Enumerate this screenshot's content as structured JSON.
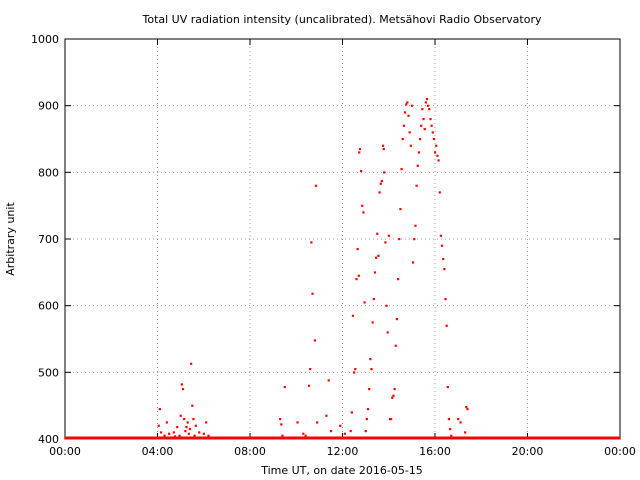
{
  "chart_data": {
    "type": "scatter",
    "title": "Total UV radiation intensity (uncalibrated). Metsähovi Radio Observatory",
    "xlabel": "Time UT, on date 2016-05-15",
    "ylabel": "Arbitrary unit",
    "xlim": [
      0,
      24
    ],
    "ylim": [
      400,
      1000
    ],
    "x_ticks": [
      {
        "value": 0,
        "label": "00:00"
      },
      {
        "value": 4,
        "label": "04:00"
      },
      {
        "value": 8,
        "label": "08:00"
      },
      {
        "value": 12,
        "label": "12:00"
      },
      {
        "value": 16,
        "label": "16:00"
      },
      {
        "value": 20,
        "label": "20:00"
      },
      {
        "value": 24,
        "label": "00:00"
      }
    ],
    "y_ticks": [
      {
        "value": 400,
        "label": "400"
      },
      {
        "value": 500,
        "label": "500"
      },
      {
        "value": 600,
        "label": "600"
      },
      {
        "value": 700,
        "label": "700"
      },
      {
        "value": 800,
        "label": "800"
      },
      {
        "value": 900,
        "label": "900"
      },
      {
        "value": 1000,
        "label": "1000"
      }
    ],
    "grid": true,
    "marker_color": "#ff0000",
    "baseline": {
      "from": 0,
      "to": 24,
      "value": 400
    },
    "points": [
      [
        4.05,
        420
      ],
      [
        4.1,
        445
      ],
      [
        4.15,
        410
      ],
      [
        4.3,
        405
      ],
      [
        4.4,
        425
      ],
      [
        4.5,
        408
      ],
      [
        4.6,
        402
      ],
      [
        4.7,
        410
      ],
      [
        4.75,
        404
      ],
      [
        4.85,
        418
      ],
      [
        4.95,
        405
      ],
      [
        5.0,
        435
      ],
      [
        5.05,
        482
      ],
      [
        5.1,
        475
      ],
      [
        5.15,
        430
      ],
      [
        5.2,
        412
      ],
      [
        5.25,
        418
      ],
      [
        5.3,
        425
      ],
      [
        5.35,
        408
      ],
      [
        5.4,
        415
      ],
      [
        5.45,
        513
      ],
      [
        5.5,
        450
      ],
      [
        5.55,
        430
      ],
      [
        5.6,
        405
      ],
      [
        5.65,
        420
      ],
      [
        5.7,
        402
      ],
      [
        5.8,
        410
      ],
      [
        6.0,
        408
      ],
      [
        6.1,
        425
      ],
      [
        6.2,
        405
      ],
      [
        6.3,
        402
      ],
      [
        9.3,
        430
      ],
      [
        9.35,
        422
      ],
      [
        9.4,
        405
      ],
      [
        9.5,
        478
      ],
      [
        9.9,
        402
      ],
      [
        10.05,
        425
      ],
      [
        10.3,
        408
      ],
      [
        10.4,
        405
      ],
      [
        10.55,
        480
      ],
      [
        10.6,
        505
      ],
      [
        10.65,
        695
      ],
      [
        10.7,
        618
      ],
      [
        10.8,
        548
      ],
      [
        10.85,
        780
      ],
      [
        10.9,
        425
      ],
      [
        11.0,
        402
      ],
      [
        11.3,
        435
      ],
      [
        11.4,
        488
      ],
      [
        11.5,
        412
      ],
      [
        11.6,
        402
      ],
      [
        11.9,
        420
      ],
      [
        12.1,
        408
      ],
      [
        12.3,
        402
      ],
      [
        12.35,
        412
      ],
      [
        12.4,
        440
      ],
      [
        12.45,
        585
      ],
      [
        12.5,
        500
      ],
      [
        12.55,
        505
      ],
      [
        12.6,
        640
      ],
      [
        12.65,
        685
      ],
      [
        12.7,
        645
      ],
      [
        12.72,
        830
      ],
      [
        12.75,
        835
      ],
      [
        12.8,
        802
      ],
      [
        12.85,
        750
      ],
      [
        12.9,
        740
      ],
      [
        12.95,
        605
      ],
      [
        13.0,
        412
      ],
      [
        13.05,
        430
      ],
      [
        13.1,
        445
      ],
      [
        13.15,
        475
      ],
      [
        13.2,
        520
      ],
      [
        13.25,
        505
      ],
      [
        13.3,
        575
      ],
      [
        13.35,
        610
      ],
      [
        13.4,
        650
      ],
      [
        13.45,
        672
      ],
      [
        13.5,
        708
      ],
      [
        13.55,
        675
      ],
      [
        13.6,
        770
      ],
      [
        13.65,
        783
      ],
      [
        13.7,
        787
      ],
      [
        13.75,
        840
      ],
      [
        13.78,
        835
      ],
      [
        13.8,
        800
      ],
      [
        13.85,
        695
      ],
      [
        13.9,
        600
      ],
      [
        13.95,
        560
      ],
      [
        14.0,
        705
      ],
      [
        14.05,
        430
      ],
      [
        14.1,
        430
      ],
      [
        14.15,
        462
      ],
      [
        14.2,
        465
      ],
      [
        14.25,
        475
      ],
      [
        14.3,
        540
      ],
      [
        14.35,
        580
      ],
      [
        14.4,
        640
      ],
      [
        14.45,
        700
      ],
      [
        14.5,
        745
      ],
      [
        14.55,
        805
      ],
      [
        14.6,
        850
      ],
      [
        14.65,
        870
      ],
      [
        14.7,
        890
      ],
      [
        14.75,
        902
      ],
      [
        14.8,
        905
      ],
      [
        14.85,
        885
      ],
      [
        14.9,
        860
      ],
      [
        14.95,
        840
      ],
      [
        15.0,
        900
      ],
      [
        15.05,
        665
      ],
      [
        15.1,
        700
      ],
      [
        15.15,
        720
      ],
      [
        15.2,
        780
      ],
      [
        15.25,
        810
      ],
      [
        15.3,
        830
      ],
      [
        15.35,
        850
      ],
      [
        15.4,
        870
      ],
      [
        15.45,
        895
      ],
      [
        15.5,
        880
      ],
      [
        15.55,
        865
      ],
      [
        15.6,
        905
      ],
      [
        15.65,
        910
      ],
      [
        15.7,
        900
      ],
      [
        15.75,
        895
      ],
      [
        15.8,
        880
      ],
      [
        15.85,
        870
      ],
      [
        15.9,
        860
      ],
      [
        15.95,
        850
      ],
      [
        16.0,
        830
      ],
      [
        16.05,
        840
      ],
      [
        16.1,
        825
      ],
      [
        16.15,
        818
      ],
      [
        16.2,
        770
      ],
      [
        16.25,
        705
      ],
      [
        16.3,
        690
      ],
      [
        16.35,
        670
      ],
      [
        16.4,
        655
      ],
      [
        16.45,
        610
      ],
      [
        16.5,
        570
      ],
      [
        16.55,
        478
      ],
      [
        16.6,
        430
      ],
      [
        16.65,
        415
      ],
      [
        16.7,
        405
      ],
      [
        16.8,
        402
      ],
      [
        17.0,
        430
      ],
      [
        17.1,
        425
      ],
      [
        17.3,
        410
      ],
      [
        17.35,
        448
      ],
      [
        17.4,
        445
      ],
      [
        17.5,
        402
      ]
    ]
  }
}
